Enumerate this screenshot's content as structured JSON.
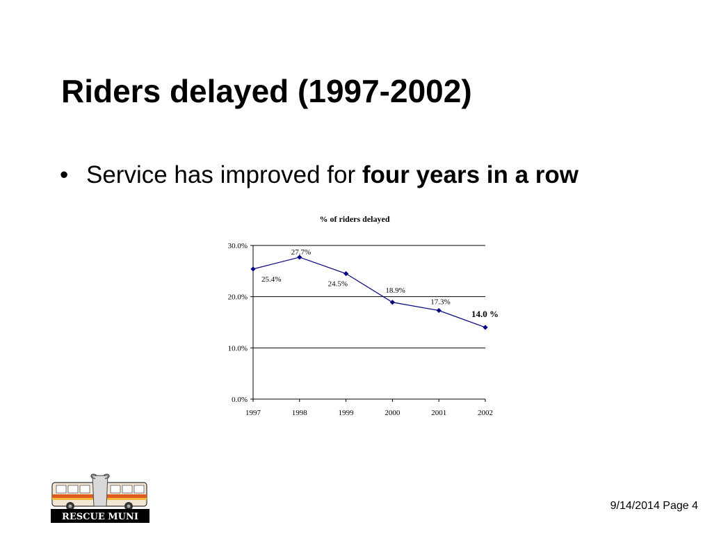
{
  "slide": {
    "title": "Riders delayed (1997-2002)",
    "bullet_text": "Service has improved for ",
    "bullet_bold": "four years in a row",
    "footer": "9/14/2014 Page 4",
    "logo_text": "RESCUE MUNI"
  },
  "chart_data": {
    "type": "line",
    "title": "% of riders delayed",
    "xlabel": "",
    "ylabel": "",
    "categories": [
      "1997",
      "1998",
      "1999",
      "2000",
      "2001",
      "2002"
    ],
    "series": [
      {
        "values": [
          25.4,
          27.7,
          24.5,
          18.9,
          17.3,
          14.0
        ],
        "labels": [
          "25.4%",
          "27.7%",
          "24.5%",
          "18.9%",
          "17.3%",
          "14.0 %"
        ],
        "color": "#000080"
      }
    ],
    "ylim": [
      0,
      30
    ],
    "yticks": [
      "0.0%",
      "10.0%",
      "20.0%",
      "30.0%"
    ],
    "grid": true,
    "legend": "none"
  }
}
